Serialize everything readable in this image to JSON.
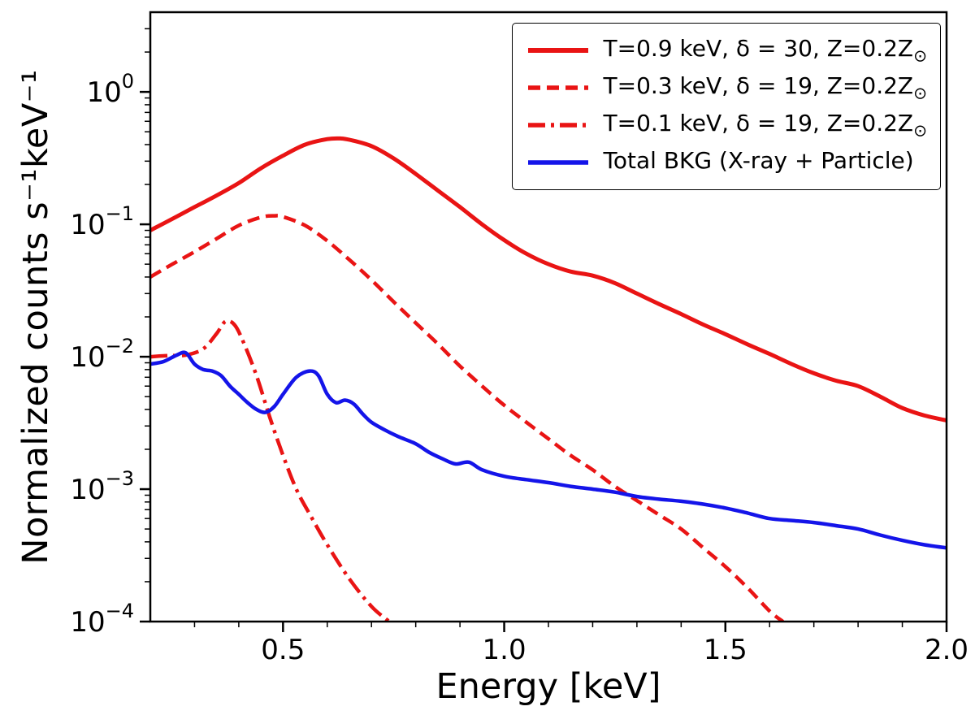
{
  "chart_data": {
    "type": "line",
    "title": "",
    "xlabel": "Energy [keV]",
    "ylabel": "Normalized counts s^-1 keV^-1",
    "ylabel_display": "Normalized counts s⁻¹keV⁻¹",
    "x_scale": "linear",
    "y_scale": "log",
    "xlim": [
      0.2,
      2.0
    ],
    "ylim": [
      0.0001,
      4.0
    ],
    "grid": false,
    "legend_position": "upper right",
    "axis_color": "#000000",
    "x_ticks": [
      {
        "value": 0.5,
        "label": "0.5"
      },
      {
        "value": 1.0,
        "label": "1.0"
      },
      {
        "value": 1.5,
        "label": "1.5"
      },
      {
        "value": 2.0,
        "label": "2.0"
      }
    ],
    "y_ticks": [
      {
        "value": 1,
        "mantissa": "10",
        "exponent": "0"
      },
      {
        "value": 0.1,
        "mantissa": "10",
        "exponent": "−1"
      },
      {
        "value": 0.01,
        "mantissa": "10",
        "exponent": "−2"
      },
      {
        "value": 0.001,
        "mantissa": "10",
        "exponent": "−3"
      },
      {
        "value": 0.0001,
        "mantissa": "10",
        "exponent": "−4"
      }
    ],
    "series": [
      {
        "id": "t09",
        "label": "T=0.9 keV, δ = 30, Z=0.2Z⊙",
        "color": "#e91414",
        "line_style": "solid",
        "dash_array": "",
        "line_width": 5,
        "points": [
          [
            0.2,
            0.09
          ],
          [
            0.25,
            0.11
          ],
          [
            0.3,
            0.135
          ],
          [
            0.35,
            0.165
          ],
          [
            0.4,
            0.205
          ],
          [
            0.45,
            0.265
          ],
          [
            0.5,
            0.33
          ],
          [
            0.55,
            0.4
          ],
          [
            0.6,
            0.44
          ],
          [
            0.63,
            0.445
          ],
          [
            0.65,
            0.435
          ],
          [
            0.7,
            0.39
          ],
          [
            0.75,
            0.315
          ],
          [
            0.8,
            0.24
          ],
          [
            0.85,
            0.18
          ],
          [
            0.9,
            0.135
          ],
          [
            0.95,
            0.1
          ],
          [
            1.0,
            0.076
          ],
          [
            1.05,
            0.06
          ],
          [
            1.1,
            0.05
          ],
          [
            1.15,
            0.044
          ],
          [
            1.2,
            0.041
          ],
          [
            1.25,
            0.036
          ],
          [
            1.3,
            0.03
          ],
          [
            1.35,
            0.025
          ],
          [
            1.4,
            0.021
          ],
          [
            1.45,
            0.0175
          ],
          [
            1.5,
            0.0148
          ],
          [
            1.55,
            0.0124
          ],
          [
            1.6,
            0.0105
          ],
          [
            1.65,
            0.0088
          ],
          [
            1.7,
            0.0075
          ],
          [
            1.75,
            0.0066
          ],
          [
            1.8,
            0.006
          ],
          [
            1.85,
            0.005
          ],
          [
            1.9,
            0.0041
          ],
          [
            1.95,
            0.0036
          ],
          [
            2.0,
            0.0033
          ]
        ]
      },
      {
        "id": "t03",
        "label": "T=0.3 keV, δ = 19, Z=0.2Z⊙",
        "color": "#e91414",
        "line_style": "dashed",
        "dash_array": "15 8",
        "line_width": 4.5,
        "points": [
          [
            0.2,
            0.04
          ],
          [
            0.25,
            0.05
          ],
          [
            0.3,
            0.062
          ],
          [
            0.35,
            0.078
          ],
          [
            0.4,
            0.098
          ],
          [
            0.45,
            0.113
          ],
          [
            0.48,
            0.116
          ],
          [
            0.5,
            0.114
          ],
          [
            0.55,
            0.098
          ],
          [
            0.6,
            0.075
          ],
          [
            0.65,
            0.054
          ],
          [
            0.7,
            0.038
          ],
          [
            0.75,
            0.026
          ],
          [
            0.8,
            0.018
          ],
          [
            0.85,
            0.0125
          ],
          [
            0.9,
            0.0085
          ],
          [
            0.95,
            0.006
          ],
          [
            1.0,
            0.0043
          ],
          [
            1.05,
            0.0032
          ],
          [
            1.1,
            0.0024
          ],
          [
            1.15,
            0.0018
          ],
          [
            1.2,
            0.0014
          ],
          [
            1.25,
            0.00105
          ],
          [
            1.3,
            0.00082
          ],
          [
            1.35,
            0.00064
          ],
          [
            1.4,
            0.0005
          ],
          [
            1.45,
            0.00036
          ],
          [
            1.5,
            0.00026
          ],
          [
            1.55,
            0.00018
          ],
          [
            1.6,
            0.00012
          ],
          [
            1.63,
            0.0001
          ]
        ]
      },
      {
        "id": "t01",
        "label": "T=0.1 keV, δ = 19, Z=0.2Z⊙",
        "color": "#e91414",
        "line_style": "dashdot",
        "dash_array": "21 7 4 7",
        "line_width": 4.5,
        "points": [
          [
            0.2,
            0.01
          ],
          [
            0.24,
            0.0102
          ],
          [
            0.28,
            0.0103
          ],
          [
            0.32,
            0.0115
          ],
          [
            0.35,
            0.015
          ],
          [
            0.37,
            0.0185
          ],
          [
            0.39,
            0.0175
          ],
          [
            0.41,
            0.013
          ],
          [
            0.44,
            0.0072
          ],
          [
            0.47,
            0.0035
          ],
          [
            0.5,
            0.0018
          ],
          [
            0.53,
            0.001
          ],
          [
            0.56,
            0.00065
          ],
          [
            0.6,
            0.00038
          ],
          [
            0.65,
            0.00021
          ],
          [
            0.7,
            0.00013
          ],
          [
            0.74,
            0.0001
          ]
        ]
      },
      {
        "id": "bkg",
        "label": "Total BKG (X-ray + Particle)",
        "color": "#1414e9",
        "line_style": "solid",
        "dash_array": "",
        "line_width": 4.5,
        "points": [
          [
            0.2,
            0.0088
          ],
          [
            0.23,
            0.0092
          ],
          [
            0.26,
            0.0103
          ],
          [
            0.28,
            0.0107
          ],
          [
            0.3,
            0.0088
          ],
          [
            0.32,
            0.008
          ],
          [
            0.34,
            0.0078
          ],
          [
            0.36,
            0.0072
          ],
          [
            0.38,
            0.006
          ],
          [
            0.4,
            0.0052
          ],
          [
            0.42,
            0.0045
          ],
          [
            0.44,
            0.004
          ],
          [
            0.46,
            0.0038
          ],
          [
            0.48,
            0.0042
          ],
          [
            0.5,
            0.0052
          ],
          [
            0.53,
            0.007
          ],
          [
            0.56,
            0.0078
          ],
          [
            0.58,
            0.0072
          ],
          [
            0.6,
            0.0052
          ],
          [
            0.62,
            0.0045
          ],
          [
            0.64,
            0.0047
          ],
          [
            0.66,
            0.0044
          ],
          [
            0.68,
            0.0037
          ],
          [
            0.7,
            0.0032
          ],
          [
            0.73,
            0.0028
          ],
          [
            0.76,
            0.0025
          ],
          [
            0.8,
            0.0022
          ],
          [
            0.83,
            0.0019
          ],
          [
            0.86,
            0.0017
          ],
          [
            0.89,
            0.00155
          ],
          [
            0.92,
            0.0016
          ],
          [
            0.95,
            0.0014
          ],
          [
            1.0,
            0.00125
          ],
          [
            1.05,
            0.00118
          ],
          [
            1.1,
            0.00112
          ],
          [
            1.15,
            0.00105
          ],
          [
            1.2,
            0.001
          ],
          [
            1.25,
            0.00095
          ],
          [
            1.3,
            0.00088
          ],
          [
            1.35,
            0.00084
          ],
          [
            1.4,
            0.00081
          ],
          [
            1.45,
            0.00077
          ],
          [
            1.5,
            0.00072
          ],
          [
            1.55,
            0.00066
          ],
          [
            1.6,
            0.0006
          ],
          [
            1.65,
            0.00058
          ],
          [
            1.7,
            0.00056
          ],
          [
            1.75,
            0.00053
          ],
          [
            1.8,
            0.0005
          ],
          [
            1.85,
            0.00045
          ],
          [
            1.9,
            0.00041
          ],
          [
            1.95,
            0.00038
          ],
          [
            2.0,
            0.00036
          ]
        ]
      }
    ]
  },
  "legend": {
    "entries": [
      {
        "label_main": "T=0.9 keV, δ = 30, Z=0.2Z",
        "label_sub": "⊙"
      },
      {
        "label_main": "T=0.3 keV, δ = 19, Z=0.2Z",
        "label_sub": "⊙"
      },
      {
        "label_main": "T=0.1 keV, δ = 19, Z=0.2Z",
        "label_sub": "⊙"
      },
      {
        "label_main": "Total BKG (X-ray + Particle)",
        "label_sub": ""
      }
    ]
  }
}
